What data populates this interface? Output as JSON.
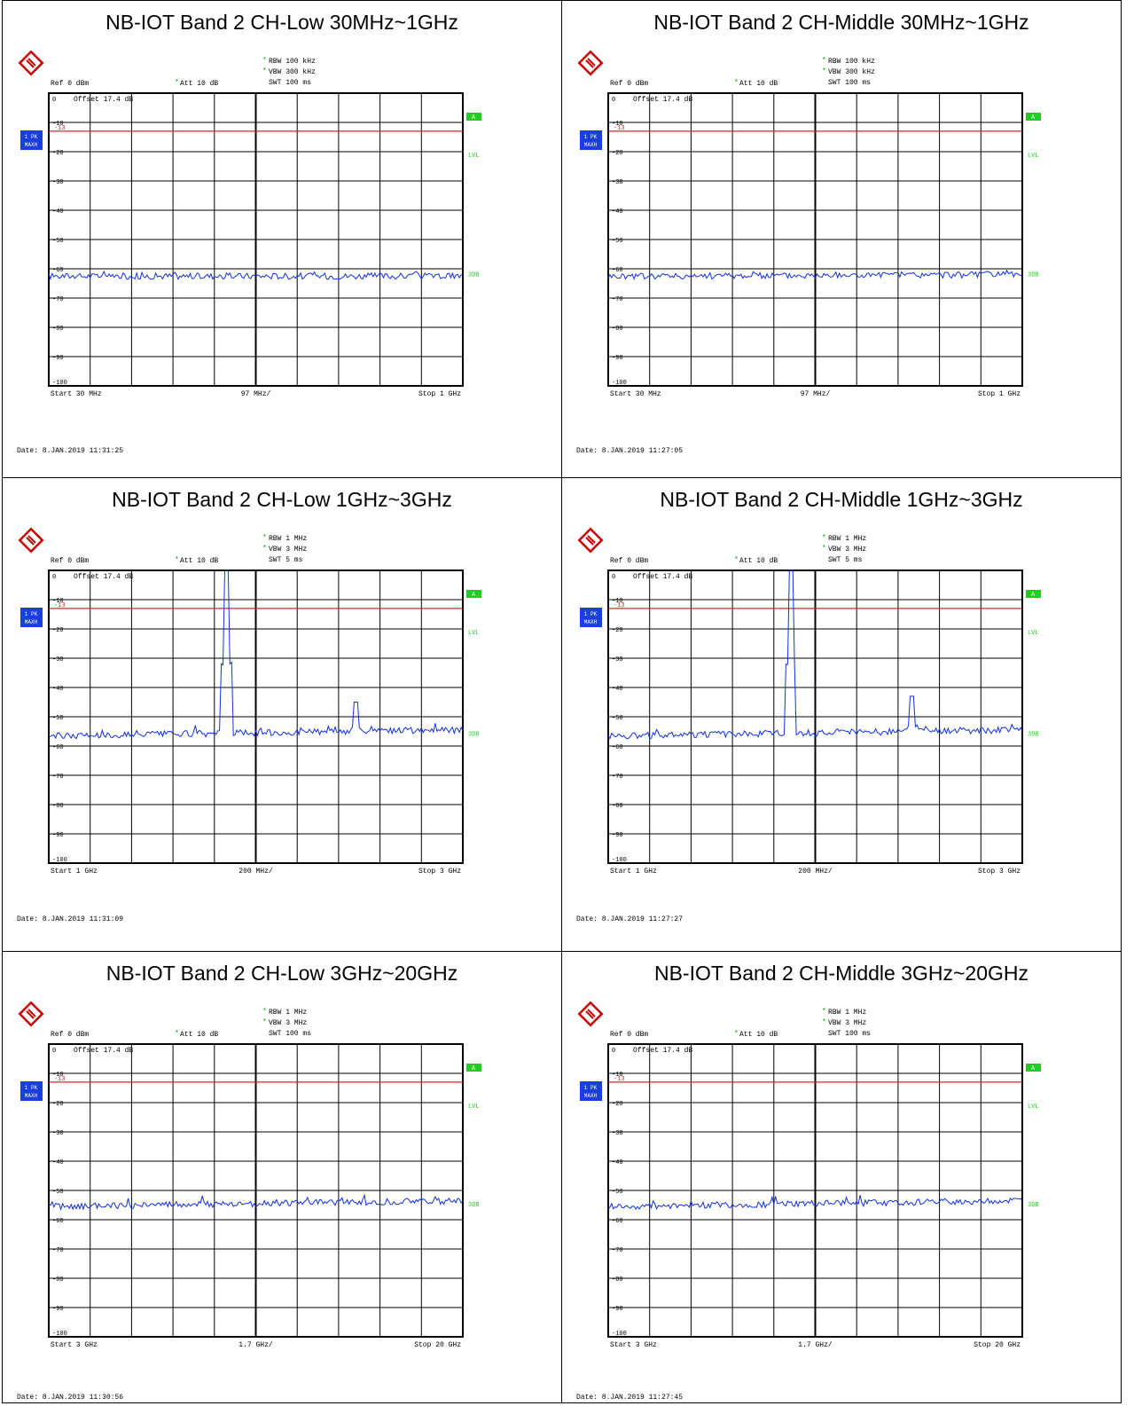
{
  "panels": [
    {
      "title": "NB-IOT Band 2 CH-Low 30MHz~1GHz",
      "rbw": "RBW 100 kHz",
      "vbw": "VBW 300 kHz",
      "swt": "SWT 100 ms",
      "ref": "Ref 0 dBm",
      "att": "Att 10 dB",
      "offset": "Offset 17.4 dB",
      "trace_label": "1 PK",
      "trace_mode": "MAXH",
      "start": "Start 30 MHz",
      "span_div": "97 MHz/",
      "stop": "Stop 1 GHz",
      "date": "Date: 8.JAN.2019 11:31:25"
    },
    {
      "title": "NB-IOT Band 2 CH-Middle 30MHz~1GHz",
      "rbw": "RBW 100 kHz",
      "vbw": "VBW 300 kHz",
      "swt": "SWT 100 ms",
      "ref": "Ref 0 dBm",
      "att": "Att 10 dB",
      "offset": "Offset 17.4 dB",
      "trace_label": "1 PK",
      "trace_mode": "MAXH",
      "start": "Start 30 MHz",
      "span_div": "97 MHz/",
      "stop": "Stop 1 GHz",
      "date": "Date: 8.JAN.2019 11:27:05"
    },
    {
      "title": "NB-IOT Band 2 CH-Low 1GHz~3GHz",
      "rbw": "RBW 1 MHz",
      "vbw": "VBW 3 MHz",
      "swt": "SWT 5 ms",
      "ref": "Ref 0 dBm",
      "att": "Att 10 dB",
      "offset": "Offset 17.4 dB",
      "trace_label": "1 PK",
      "trace_mode": "MAXH",
      "start": "Start 1 GHz",
      "span_div": "200 MHz/",
      "stop": "Stop 3 GHz",
      "date": "Date: 8.JAN.2019 11:31:09"
    },
    {
      "title": "NB-IOT Band 2 CH-Middle 1GHz~3GHz",
      "rbw": "RBW 1 MHz",
      "vbw": "VBW 3 MHz",
      "swt": "SWT 5 ms",
      "ref": "Ref 0 dBm",
      "att": "Att 10 dB",
      "offset": "Offset 17.4 dB",
      "trace_label": "1 PK",
      "trace_mode": "MAXH",
      "start": "Start 1 GHz",
      "span_div": "200 MHz/",
      "stop": "Stop 3 GHz",
      "date": "Date: 8.JAN.2019 11:27:27"
    },
    {
      "title": "NB-IOT Band 2 CH-Low 3GHz~20GHz",
      "rbw": "RBW 1 MHz",
      "vbw": "VBW 3 MHz",
      "swt": "SWT 100 ms",
      "ref": "Ref 0 dBm",
      "att": "Att 10 dB",
      "offset": "Offset 17.4 dB",
      "trace_label": "1 PK",
      "trace_mode": "MAXH",
      "start": "Start 3 GHz",
      "span_div": "1.7 GHz/",
      "stop": "Stop 20 GHz",
      "date": "Date: 8.JAN.2019 11:30:56"
    },
    {
      "title": "NB-IOT Band 2 CH-Middle 3GHz~20GHz",
      "rbw": "RBW 1 MHz",
      "vbw": "VBW 3 MHz",
      "swt": "SWT 100 ms",
      "ref": "Ref 0 dBm",
      "att": "Att 10 dB",
      "offset": "Offset 17.4 dB",
      "trace_label": "1 PK",
      "trace_mode": "MAXH",
      "start": "Start 3 GHz",
      "span_div": "1.7 GHz/",
      "stop": "Stop 20 GHz",
      "date": "Date: 8.JAN.2019 11:27:45"
    }
  ],
  "chart_data": [
    {
      "type": "line",
      "title": "NB-IOT Band 2 CH-Low 30MHz~1GHz",
      "xlim": [
        0.03,
        1.0
      ],
      "x_unit": "GHz",
      "ylim": [
        -100,
        0
      ],
      "y_unit": "dBm",
      "yticks": [
        0,
        -10,
        -20,
        -30,
        -40,
        -50,
        -60,
        -70,
        -80,
        -90,
        -100
      ],
      "limit_line": -13,
      "limit_label": "-13",
      "noise_floor": -62.5,
      "noise_floor_end": -62.5,
      "peaks": [],
      "side_labels": [
        "A",
        "LVL",
        "3DB"
      ],
      "grid": true
    },
    {
      "type": "line",
      "title": "NB-IOT Band 2 CH-Middle 30MHz~1GHz",
      "xlim": [
        0.03,
        1.0
      ],
      "x_unit": "GHz",
      "ylim": [
        -100,
        0
      ],
      "y_unit": "dBm",
      "yticks": [
        0,
        -10,
        -20,
        -30,
        -40,
        -50,
        -60,
        -70,
        -80,
        -90,
        -100
      ],
      "limit_line": -13,
      "limit_label": "-13",
      "noise_floor": -62.5,
      "noise_floor_end": -62.0,
      "peaks": [],
      "side_labels": [
        "A",
        "LVL",
        "3DB"
      ],
      "grid": true
    },
    {
      "type": "line",
      "title": "NB-IOT Band 2 CH-Low 1GHz~3GHz",
      "xlim": [
        1,
        3
      ],
      "x_unit": "GHz",
      "ylim": [
        -100,
        0
      ],
      "y_unit": "dBm",
      "yticks": [
        0,
        -10,
        -20,
        -30,
        -40,
        -50,
        -60,
        -70,
        -80,
        -90,
        -100
      ],
      "limit_line": -13,
      "limit_label": "-13",
      "noise_floor": -56.5,
      "noise_floor_end": -54.5,
      "peaks": [
        {
          "x": 1.86,
          "y": 0
        },
        {
          "x": 2.48,
          "y": -45
        }
      ],
      "side_labels": [
        "A",
        "LVL",
        "3DB"
      ],
      "grid": true
    },
    {
      "type": "line",
      "title": "NB-IOT Band 2 CH-Middle 1GHz~3GHz",
      "xlim": [
        1,
        3
      ],
      "x_unit": "GHz",
      "ylim": [
        -100,
        0
      ],
      "y_unit": "dBm",
      "yticks": [
        0,
        -10,
        -20,
        -30,
        -40,
        -50,
        -60,
        -70,
        -80,
        -90,
        -100
      ],
      "limit_line": -13,
      "limit_label": "-13",
      "noise_floor": -56.5,
      "noise_floor_end": -54.5,
      "peaks": [
        {
          "x": 1.88,
          "y": 0
        },
        {
          "x": 2.47,
          "y": -43
        }
      ],
      "side_labels": [
        "A",
        "LVL",
        "3DB"
      ],
      "grid": true
    },
    {
      "type": "line",
      "title": "NB-IOT Band 2 CH-Low 3GHz~20GHz",
      "xlim": [
        3,
        20
      ],
      "x_unit": "GHz",
      "ylim": [
        -100,
        0
      ],
      "y_unit": "dBm",
      "yticks": [
        0,
        -10,
        -20,
        -30,
        -40,
        -50,
        -60,
        -70,
        -80,
        -90,
        -100
      ],
      "limit_line": -13,
      "limit_label": "-13",
      "noise_floor": -55.5,
      "noise_floor_end": -53.5,
      "peaks": [],
      "side_labels": [
        "A",
        "LVL",
        "3DB"
      ],
      "grid": true
    },
    {
      "type": "line",
      "title": "NB-IOT Band 2 CH-Middle 3GHz~20GHz",
      "xlim": [
        3,
        20
      ],
      "x_unit": "GHz",
      "ylim": [
        -100,
        0
      ],
      "y_unit": "dBm",
      "yticks": [
        0,
        -10,
        -20,
        -30,
        -40,
        -50,
        -60,
        -70,
        -80,
        -90,
        -100
      ],
      "limit_line": -13,
      "limit_label": "-13",
      "noise_floor": -55.5,
      "noise_floor_end": -53.5,
      "peaks": [],
      "side_labels": [
        "A",
        "LVL",
        "3DB"
      ],
      "grid": true
    }
  ]
}
